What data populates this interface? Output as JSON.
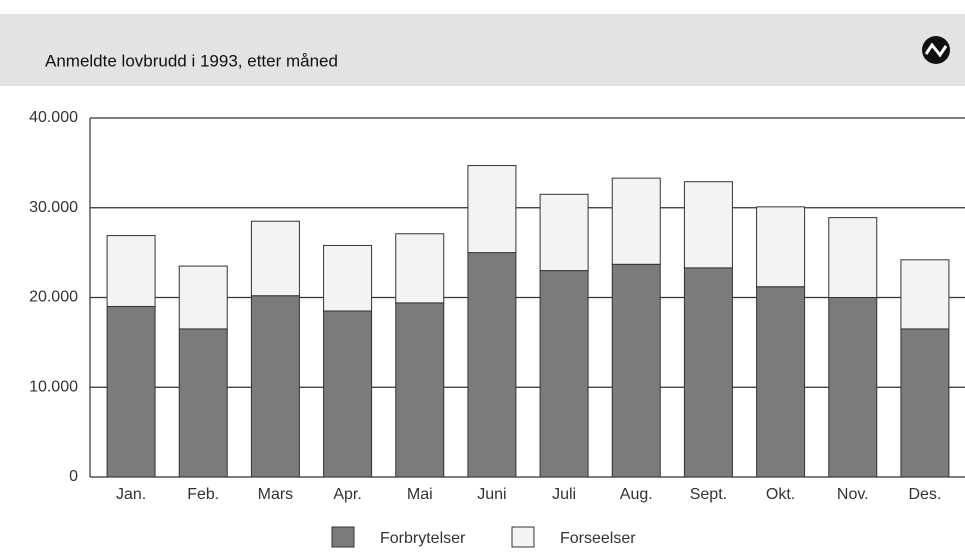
{
  "chart_data": {
    "type": "stacked_bar",
    "title": "Anmeldte lovbrudd i 1993, etter måned",
    "categories": [
      "Jan.",
      "Feb.",
      "Mars",
      "Apr.",
      "Mai",
      "Juni",
      "Juli",
      "Aug.",
      "Sept.",
      "Okt.",
      "Nov.",
      "Des."
    ],
    "series": [
      {
        "name": "Forbrytelser",
        "color": "#7b7b7b",
        "values": [
          19000,
          16500,
          20200,
          18500,
          19400,
          25000,
          23000,
          23700,
          23300,
          21200,
          20000,
          16500
        ]
      },
      {
        "name": "Forseelser",
        "color": "#f3f3f3",
        "values": [
          7900,
          7000,
          8300,
          7300,
          7700,
          9700,
          8500,
          9600,
          9600,
          8900,
          8900,
          7700
        ]
      }
    ],
    "ylim": [
      0,
      40000
    ],
    "yticks": [
      0,
      {
        "value": 10000,
        "label": "10.000"
      },
      {
        "value": 20000,
        "label": "20.000"
      },
      {
        "value": 30000,
        "label": "30.000"
      },
      {
        "value": 40000,
        "label": "40.000"
      }
    ],
    "grid": true,
    "legend": "bottom"
  }
}
